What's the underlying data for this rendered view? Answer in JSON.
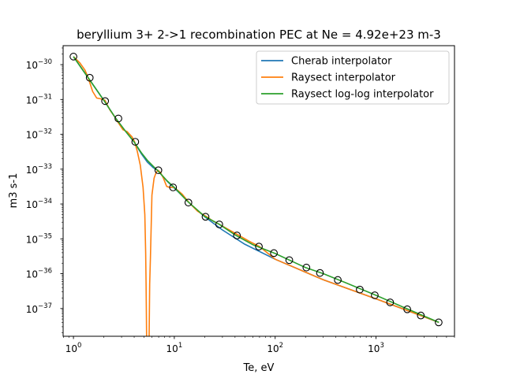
{
  "chart_data": {
    "type": "line",
    "title": "beryllium 3+ 2->1 recombination PEC at Ne = 4.92e+23 m-3",
    "xlabel": "Te, eV",
    "ylabel": "m3 s-1",
    "xscale": "log",
    "yscale": "log",
    "xlim": [
      0.79,
      6000
    ],
    "ylim": [
      1.6e-38,
      3.5e-30
    ],
    "grid": false,
    "legend_position": "top-right",
    "x_tick_labels": [
      {
        "value": 1,
        "mantissa": "10",
        "exp": "0"
      },
      {
        "value": 10,
        "mantissa": "10",
        "exp": "1"
      },
      {
        "value": 100,
        "mantissa": "10",
        "exp": "2"
      },
      {
        "value": 1000,
        "mantissa": "10",
        "exp": "3"
      }
    ],
    "y_tick_labels": [
      {
        "value": 1e-37,
        "mantissa": "10",
        "exp": "−37"
      },
      {
        "value": 1e-36,
        "mantissa": "10",
        "exp": "−36"
      },
      {
        "value": 1e-35,
        "mantissa": "10",
        "exp": "−35"
      },
      {
        "value": 1e-34,
        "mantissa": "10",
        "exp": "−34"
      },
      {
        "value": 1e-33,
        "mantissa": "10",
        "exp": "−33"
      },
      {
        "value": 1e-32,
        "mantissa": "10",
        "exp": "−32"
      },
      {
        "value": 1e-31,
        "mantissa": "10",
        "exp": "−31"
      },
      {
        "value": 1e-30,
        "mantissa": "10",
        "exp": "−30"
      }
    ],
    "series": [
      {
        "name": "Cherab interpolator",
        "color": "#1f77b4",
        "x": [
          1,
          1.4,
          2.0,
          2.6,
          3.3,
          4.0,
          4.7,
          5.4,
          6.2,
          6.8,
          8.5,
          11,
          15,
          20,
          30,
          50,
          100,
          300,
          1000,
          4200
        ],
        "y": [
          1.7e-30,
          4.2e-31,
          9.5e-32,
          3e-32,
          1.2e-32,
          6e-33,
          2.8e-33,
          1.6e-33,
          1.1e-33,
          9.3e-34,
          4.5e-34,
          2.2e-34,
          9e-35,
          4.3e-35,
          1.8e-35,
          7e-36,
          2.6e-36,
          6.7e-37,
          1.9e-37,
          4e-38
        ]
      },
      {
        "name": "Raysect interpolator",
        "color": "#ff7f0e",
        "x": [
          1,
          1.15,
          1.3,
          1.4,
          1.55,
          1.7,
          1.85,
          2.05,
          2.3,
          2.6,
          2.8,
          3.1,
          3.4,
          3.8,
          4.05,
          4.3,
          4.6,
          4.9,
          5.1,
          5.2,
          5.25,
          5.32,
          5.5,
          5.62,
          5.7,
          5.8,
          6.0,
          6.3,
          6.6,
          6.9,
          7.3,
          7.8,
          8.4,
          9.0,
          10.0,
          12.0,
          14.0,
          17.0,
          21.0,
          24.0,
          28.0,
          35.0,
          45.0,
          55.0,
          70.0,
          100,
          300,
          1000,
          4200
        ],
        "y": [
          1.7e-30,
          1.15e-30,
          7e-31,
          4.2e-31,
          1.7e-31,
          1.1e-31,
          1.05e-31,
          9.5e-32,
          5e-32,
          3e-32,
          2.1e-32,
          1.35e-32,
          1.2e-32,
          8.5e-33,
          6e-33,
          3.2e-33,
          1.3e-33,
          3e-34,
          5e-35,
          4e-36,
          5e-37,
          1e-38,
          1e-38,
          1e-38,
          5e-37,
          3e-36,
          1.8e-34,
          5.5e-34,
          8e-34,
          9.3e-34,
          8e-34,
          5.5e-34,
          3.2e-34,
          3e-34,
          3e-34,
          1.9e-34,
          1.1e-34,
          6.2e-35,
          4.3e-35,
          3.3e-35,
          2.6e-35,
          1.8e-35,
          1.2e-35,
          8.6e-36,
          6e-36,
          2.6e-36,
          6.7e-37,
          1.9e-37,
          4e-38
        ]
      },
      {
        "name": "Raysect log-log interpolator",
        "color": "#2ca02c",
        "x": [
          1,
          1.4,
          2.0,
          2.6,
          3.3,
          4.0,
          4.7,
          5.4,
          6.2,
          6.8,
          8.5,
          10,
          13.5,
          20,
          28,
          40,
          60,
          100,
          200,
          300,
          500,
          1000,
          2000,
          4200
        ],
        "y": [
          1.7e-30,
          4.2e-31,
          9.5e-32,
          3e-32,
          1.2e-32,
          6e-33,
          3e-33,
          1.8e-33,
          1.2e-33,
          9.3e-34,
          4.6e-34,
          3e-34,
          1.2e-34,
          4.4e-35,
          2.6e-35,
          1.3e-35,
          6.8e-36,
          3.8e-36,
          1.5e-36,
          1e-36,
          5.5e-37,
          2.4e-37,
          1e-37,
          4e-38
        ]
      }
    ],
    "markers": {
      "style": "open-circle",
      "edge_color": "#000000",
      "x": [
        1.0,
        1.45,
        2.06,
        2.79,
        4.1,
        6.95,
        9.72,
        13.8,
        20.4,
        27.9,
        41.8,
        69.0,
        97.2,
        138,
        204,
        278,
        418,
        690,
        972,
        1380,
        2040,
        2780,
        4180
      ],
      "y": [
        1.7e-30,
        4.2e-31,
        9e-32,
        2.85e-32,
        6.1e-33,
        9.3e-34,
        3e-34,
        1.1e-34,
        4.3e-35,
        2.6e-35,
        1.25e-35,
        6e-36,
        3.9e-36,
        2.45e-36,
        1.5e-36,
        1.05e-36,
        6.6e-37,
        3.5e-37,
        2.4e-37,
        1.5e-37,
        9.5e-38,
        6.3e-38,
        4e-38
      ]
    }
  }
}
